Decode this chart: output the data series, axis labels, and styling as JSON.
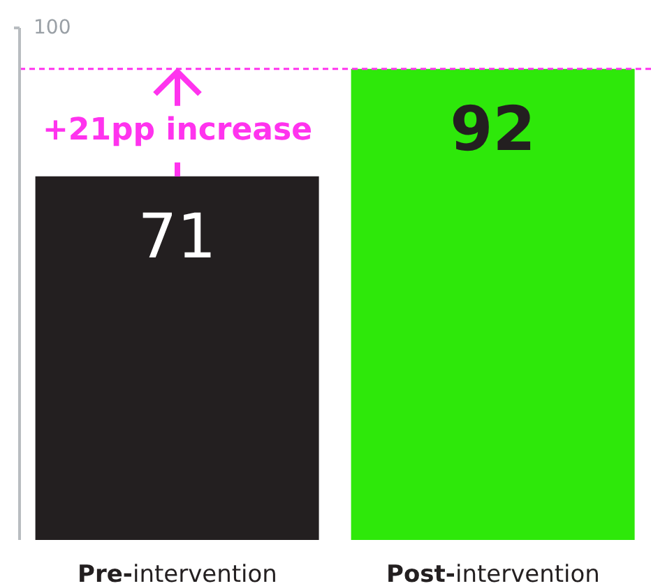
{
  "chart_data": {
    "type": "bar",
    "categories": [
      "Pre-intervention",
      "Post-intervention"
    ],
    "values": [
      71,
      92
    ],
    "colors": [
      "#231f20",
      "#2ee80a"
    ],
    "ylim": [
      0,
      100
    ],
    "yticks": [
      100
    ],
    "data_labels": true,
    "grid": false,
    "legend": false,
    "ref_lines": [
      {
        "axis": "y",
        "value": 92,
        "color": "#ff33ee",
        "line_style": "dashed"
      }
    ],
    "annotations": [
      "+21pp increase"
    ]
  }
}
